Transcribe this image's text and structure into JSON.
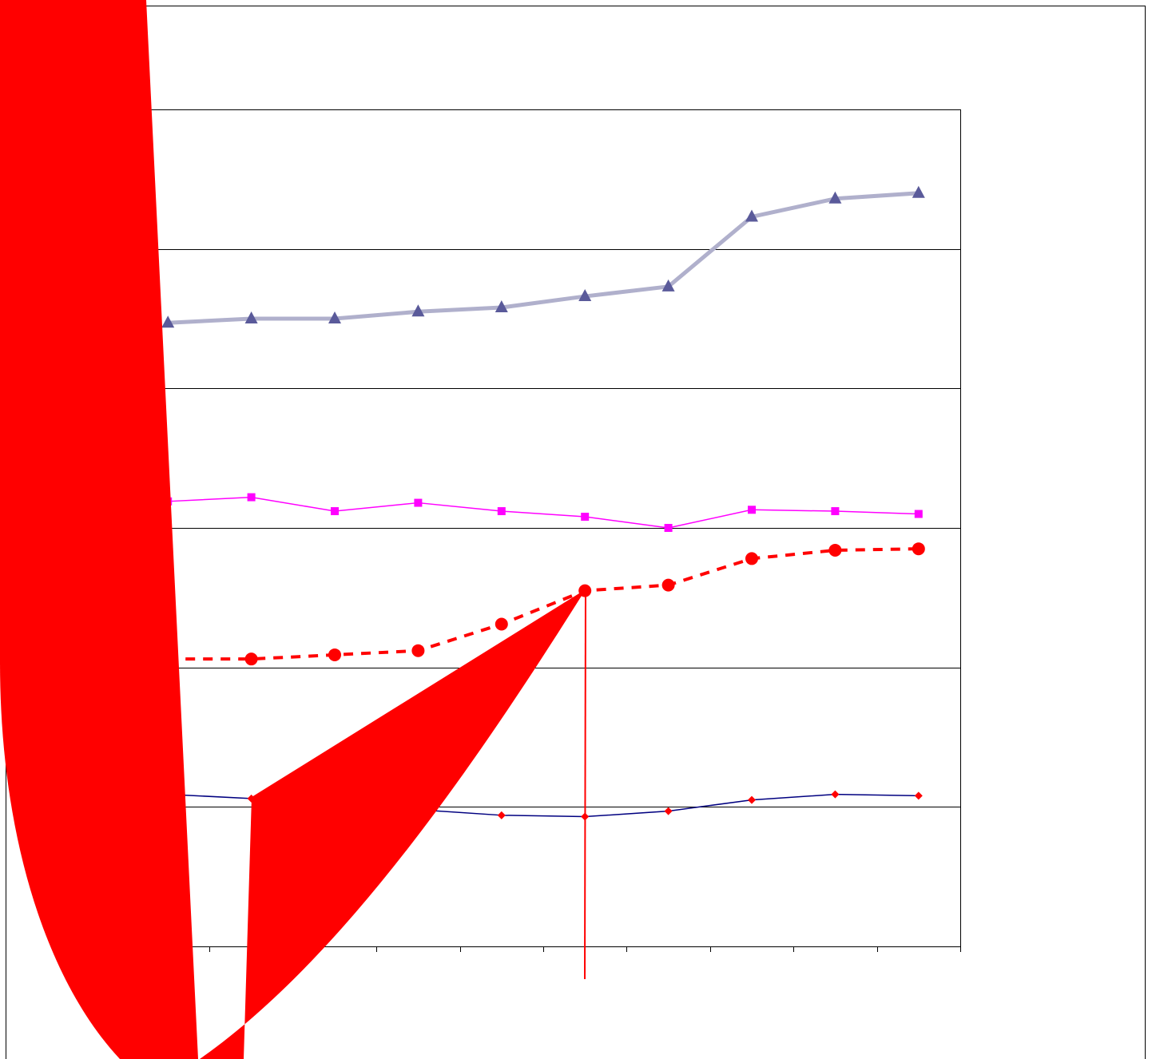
{
  "chart_data": {
    "type": "line",
    "categories": [
      null,
      null,
      null,
      null,
      null,
      null,
      null,
      null,
      null,
      null
    ],
    "ylim": [
      0,
      60
    ],
    "yticks": [
      0,
      10,
      20,
      30,
      40,
      50,
      60
    ],
    "grid": true,
    "series": [
      {
        "color": "#b0b0cc",
        "marker_color": "#5a5a9a",
        "marker": "triangle",
        "dash": false,
        "values": [
          44.7,
          45.0,
          45.0,
          45.5,
          45.8,
          46.6,
          47.3,
          52.3,
          53.6,
          54.0
        ]
      },
      {
        "color": "#ff00ff",
        "marker_color": "#ff00ff",
        "marker": "square",
        "dash": false,
        "values": [
          31.9,
          32.2,
          31.2,
          31.8,
          31.2,
          30.8,
          30.0,
          31.3,
          31.2,
          31.0
        ]
      },
      {
        "color": "#ff0000",
        "marker_color": "#ff0000",
        "marker": "circle",
        "dash": true,
        "values": [
          20.6,
          20.6,
          20.9,
          21.2,
          23.1,
          25.5,
          25.9,
          27.8,
          28.4,
          28.5
        ]
      },
      {
        "color": "#000080",
        "marker_color": "#ff0000",
        "marker": "diamond",
        "dash": false,
        "values": [
          10.9,
          10.6,
          10.1,
          9.8,
          9.4,
          9.3,
          9.7,
          10.5,
          10.9,
          10.8
        ]
      }
    ]
  }
}
